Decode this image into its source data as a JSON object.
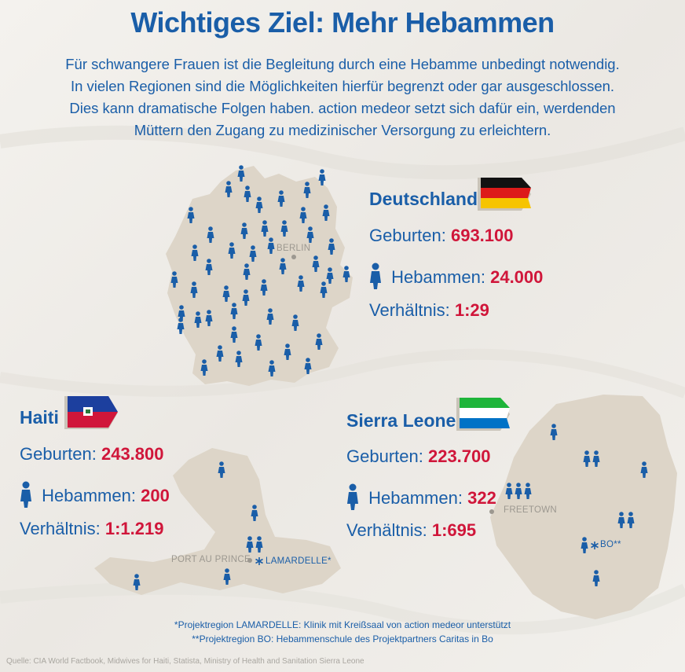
{
  "title": "Wichtiges Ziel: Mehr Hebammen",
  "intro": [
    "Für schwangere Frauen ist die Begleitung durch eine Hebamme unbedingt notwendig.",
    "In vielen Regionen sind die Möglichkeiten hierfür begrenzt oder gar ausgeschlossen.",
    "Dies kann dramatische Folgen haben. action medeor setzt sich dafür ein, werdenden",
    "Müttern den Zugang zu medizinischer Versorgung zu erleichtern."
  ],
  "countries": {
    "germany": {
      "name": "Deutschland",
      "births_label": "Geburten:",
      "births": "693.100",
      "midwives_label": "Hebammen:",
      "midwives": "24.000",
      "ratio_label": "Verhältnis:",
      "ratio": "1:29",
      "capital": "BERLIN",
      "flag_colors": [
        "#111111",
        "#dd1a1a",
        "#f6c400"
      ]
    },
    "haiti": {
      "name": "Haiti",
      "births_label": "Geburten:",
      "births": "243.800",
      "midwives_label": "Hebammen:",
      "midwives": "200",
      "ratio_label": "Verhältnis:",
      "ratio": "1:1.219",
      "capital": "PORT AU PRINCE",
      "project": "LAMARDELLE*",
      "flag_colors": [
        "#1c3f9e",
        "#d0163a"
      ]
    },
    "sierra_leone": {
      "name": "Sierra Leone",
      "births_label": "Geburten:",
      "births": "223.700",
      "midwives_label": "Hebammen:",
      "midwives": "322",
      "ratio_label": "Verhältnis:",
      "ratio": "1:695",
      "capital": "FREETOWN",
      "project": "BO**",
      "flag_colors": [
        "#1eb53a",
        "#ffffff",
        "#0072c6"
      ]
    }
  },
  "footnotes": [
    "*Projektregion LAMARDELLE: Klinik mit Kreißsaal von action medeor unterstützt",
    "**Projektregion BO: Hebammenschule des Projektpartners Caritas in Bo"
  ],
  "source": "Quelle: CIA World Factbook, Midwives for Haiti, Statista, Ministry of Health and Sanitation Sierra Leone",
  "colors": {
    "primary": "#1a5ea8",
    "accent": "#d0163a",
    "map": "#ddd5c8"
  },
  "icons": {
    "person": "woman-icon",
    "capital": "city-dot-icon",
    "project": "asterisk-icon"
  }
}
